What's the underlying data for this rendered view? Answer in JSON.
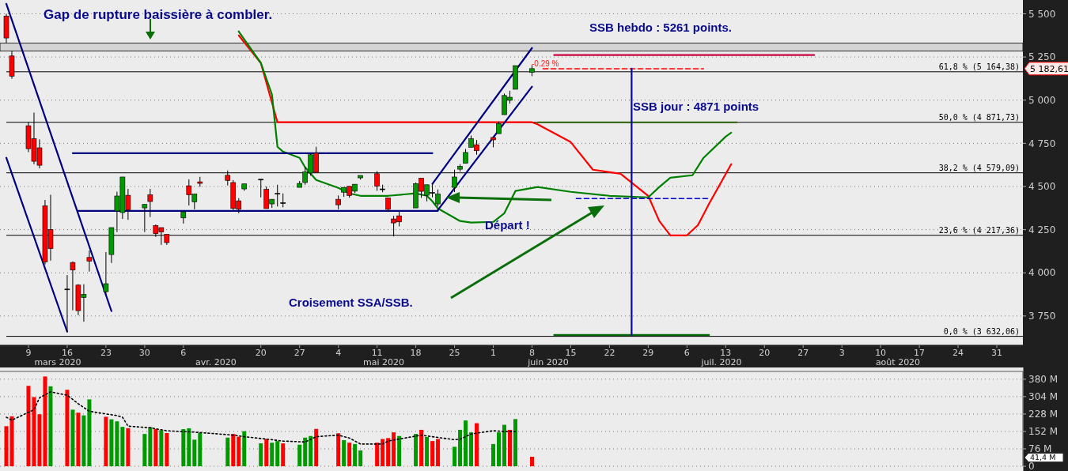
{
  "chart_data": [
    {
      "type": "candlestick",
      "title": "Gap de rupture baissière à combler.",
      "x": [
        "2020-03-05",
        "2020-03-06",
        "2020-03-09",
        "2020-03-10",
        "2020-03-11",
        "2020-03-12",
        "2020-03-13",
        "2020-03-16",
        "2020-03-17",
        "2020-03-18",
        "2020-03-19",
        "2020-03-20",
        "2020-03-23",
        "2020-03-24",
        "2020-03-25",
        "2020-03-26",
        "2020-03-27",
        "2020-03-30",
        "2020-03-31",
        "2020-04-01",
        "2020-04-02",
        "2020-04-03",
        "2020-04-06",
        "2020-04-07",
        "2020-04-08",
        "2020-04-09",
        "2020-04-14",
        "2020-04-15",
        "2020-04-16",
        "2020-04-17",
        "2020-04-20",
        "2020-04-21",
        "2020-04-22",
        "2020-04-23",
        "2020-04-24",
        "2020-04-27",
        "2020-04-28",
        "2020-04-29",
        "2020-04-30",
        "2020-05-04",
        "2020-05-05",
        "2020-05-06",
        "2020-05-07",
        "2020-05-08",
        "2020-05-11",
        "2020-05-12",
        "2020-05-13",
        "2020-05-14",
        "2020-05-15",
        "2020-05-18",
        "2020-05-19",
        "2020-05-20",
        "2020-05-21",
        "2020-05-22",
        "2020-05-25",
        "2020-05-26",
        "2020-05-27",
        "2020-05-28",
        "2020-05-29",
        "2020-06-01",
        "2020-06-02",
        "2020-06-03",
        "2020-06-04",
        "2020-06-05",
        "2020-06-08"
      ],
      "ohlc": [
        [
          5487,
          5500,
          5330,
          5360
        ],
        [
          5256,
          5284,
          5124,
          5139
        ],
        [
          4852,
          4872,
          4699,
          4719
        ],
        [
          4777,
          4928,
          4629,
          4646
        ],
        [
          4724,
          4773,
          4605,
          4623
        ],
        [
          4388,
          4422,
          4048,
          4063
        ],
        [
          4251,
          4452,
          4071,
          4140
        ],
        [
          3906,
          3987,
          3656,
          3906
        ],
        [
          4060,
          4066,
          3783,
          4016
        ],
        [
          3929,
          3934,
          3755,
          3781
        ],
        [
          3857,
          3934,
          3717,
          3875
        ],
        [
          4089,
          4129,
          4007,
          4068
        ],
        [
          3891,
          4120,
          3875,
          3937
        ],
        [
          4106,
          4262,
          4057,
          4262
        ],
        [
          4358,
          4470,
          4236,
          4445
        ],
        [
          4349,
          4555,
          4312,
          4555
        ],
        [
          4449,
          4486,
          4307,
          4365
        ],
        [
          4376,
          4396,
          4236,
          4396
        ],
        [
          4452,
          4486,
          4323,
          4413
        ],
        [
          4274,
          4280,
          4208,
          4227
        ],
        [
          4262,
          4262,
          4162,
          4236
        ],
        [
          4223,
          4223,
          4162,
          4175
        ],
        [
          4318,
          4353,
          4285,
          4353
        ],
        [
          4504,
          4541,
          4390,
          4452
        ],
        [
          4411,
          4457,
          4368,
          4457
        ],
        [
          4527,
          4556,
          4498,
          4518
        ],
        [
          4565,
          4593,
          4506,
          4535
        ],
        [
          4523,
          4537,
          4361,
          4373
        ],
        [
          4417,
          4432,
          4345,
          4368
        ],
        [
          4486,
          4515,
          4475,
          4515
        ],
        [
          4542,
          4542,
          4437,
          4542
        ],
        [
          4483,
          4500,
          4372,
          4372
        ],
        [
          4399,
          4426,
          4376,
          4426
        ],
        [
          4460,
          4510,
          4384,
          4460
        ],
        [
          4406,
          4460,
          4379,
          4406
        ],
        [
          4495,
          4532,
          4495,
          4518
        ],
        [
          4523,
          4612,
          4510,
          4584
        ],
        [
          4578,
          4689,
          4562,
          4684
        ],
        [
          4693,
          4730,
          4582,
          4582
        ],
        [
          4426,
          4448,
          4368,
          4394
        ],
        [
          4467,
          4495,
          4440,
          4495
        ],
        [
          4501,
          4501,
          4435,
          4448
        ],
        [
          4473,
          4513,
          4462,
          4513
        ],
        [
          4550,
          4564,
          4540,
          4564
        ],
        [
          4574,
          4589,
          4475,
          4502
        ],
        [
          4486,
          4510,
          4467,
          4486
        ],
        [
          4434,
          4434,
          4353,
          4368
        ],
        [
          4312,
          4330,
          4211,
          4289
        ],
        [
          4330,
          4353,
          4269,
          4295
        ],
        [
          4376,
          4523,
          4376,
          4516
        ],
        [
          4548,
          4548,
          4434,
          4472
        ],
        [
          4449,
          4510,
          4414,
          4510
        ],
        [
          4465,
          4513,
          4437,
          4465
        ],
        [
          4399,
          4483,
          4385,
          4457
        ],
        [
          4495,
          4597,
          4468,
          4555
        ],
        [
          4600,
          4629,
          4586,
          4617
        ],
        [
          4635,
          4717,
          4635,
          4697
        ],
        [
          4727,
          4795,
          4727,
          4777
        ],
        [
          4742,
          4769,
          4684,
          4707
        ],
        [
          4784,
          4784,
          4727,
          4770
        ],
        [
          4806,
          4876,
          4806,
          4864
        ],
        [
          4916,
          5038,
          4916,
          5027
        ],
        [
          4999,
          5054,
          4980,
          5017
        ],
        [
          5063,
          5200,
          5063,
          5200
        ],
        [
          5162,
          5203,
          5139,
          5182.61
        ]
      ],
      "colors": [
        "#ff0000",
        "#ff0000",
        "#ff0000",
        "#ff0000",
        "#ff0000",
        "#ff0000",
        "#ff0000",
        "#000000",
        "#ff0000",
        "#ff0000",
        "#009900",
        "#ff0000",
        "#009900",
        "#009900",
        "#009900",
        "#009900",
        "#ff0000",
        "#009900",
        "#ff0000",
        "#ff0000",
        "#ff0000",
        "#ff0000",
        "#009900",
        "#ff0000",
        "#009900",
        "#ff0000",
        "#ff0000",
        "#ff0000",
        "#ff0000",
        "#009900",
        "#000000",
        "#ff0000",
        "#009900",
        "#000000",
        "#000000",
        "#009900",
        "#009900",
        "#009900",
        "#ff0000",
        "#ff0000",
        "#009900",
        "#ff0000",
        "#009900",
        "#009900",
        "#ff0000",
        "#000000",
        "#ff0000",
        "#ff0000",
        "#ff0000",
        "#009900",
        "#ff0000",
        "#009900",
        "#000000",
        "#009900",
        "#009900",
        "#009900",
        "#009900",
        "#009900",
        "#ff0000",
        "#ff0000",
        "#009900",
        "#009900",
        "#009900",
        "#009900",
        "#009900"
      ],
      "series": [
        {
          "type": "line",
          "color": "#ff0000",
          "x": [
            "2020-04-16",
            "2020-04-20",
            "2020-04-22",
            "2020-04-23",
            "2020-06-08",
            "2020-06-09",
            "2020-06-15",
            "2020-06-19",
            "2020-06-24",
            "2020-06-29",
            "2020-07-01",
            "2020-07-03",
            "2020-07-06",
            "2020-07-08",
            "2020-07-10",
            "2020-07-14"
          ],
          "values": [
            5375,
            5215,
            4986,
            4872,
            4872,
            4860,
            4757,
            4597,
            4574,
            4446,
            4300,
            4217,
            4217,
            4277,
            4400,
            4629
          ]
        },
        {
          "type": "line",
          "color": "#008000",
          "x": [
            "2020-04-16",
            "2020-04-20",
            "2020-04-22",
            "2020-04-23",
            "2020-04-24",
            "2020-04-27",
            "2020-04-28",
            "2020-04-29",
            "2020-04-30",
            "2020-05-04",
            "2020-05-06",
            "2020-05-08",
            "2020-05-13",
            "2020-05-18",
            "2020-05-20",
            "2020-05-21",
            "2020-05-22",
            "2020-05-26",
            "2020-05-28",
            "2020-06-01",
            "2020-06-03",
            "2020-06-05",
            "2020-06-09",
            "2020-06-15",
            "2020-06-22",
            "2020-06-29",
            "2020-07-01",
            "2020-07-03",
            "2020-07-07",
            "2020-07-09",
            "2020-07-13",
            "2020-07-14"
          ],
          "values": [
            5398,
            5215,
            5032,
            4730,
            4702,
            4666,
            4611,
            4574,
            4538,
            4492,
            4460,
            4446,
            4446,
            4460,
            4446,
            4414,
            4373,
            4300,
            4291,
            4295,
            4345,
            4474,
            4497,
            4469,
            4446,
            4437,
            4497,
            4551,
            4565,
            4666,
            4789,
            4812
          ]
        },
        {
          "type": "line",
          "color": "#000080",
          "x": [
            "2020-03-05",
            "2020-03-24"
          ],
          "values": [
            5558,
            3778
          ]
        },
        {
          "type": "line",
          "color": "#000080",
          "x": [
            "2020-03-05",
            "2020-03-16"
          ],
          "values": [
            4666,
            3659
          ]
        },
        {
          "type": "line",
          "color": "#000080",
          "x": [
            "2020-03-17",
            "2020-05-21"
          ],
          "values": [
            4693,
            4693
          ]
        },
        {
          "type": "line",
          "color": "#000080",
          "x": [
            "2020-03-18",
            "2020-05-22"
          ],
          "values": [
            4359,
            4359
          ]
        },
        {
          "type": "line",
          "color": "#000080",
          "x": [
            "2020-05-21",
            "2020-06-08"
          ],
          "values": [
            4515,
            5302
          ]
        },
        {
          "type": "line",
          "color": "#000080",
          "x": [
            "2020-05-22",
            "2020-06-08"
          ],
          "values": [
            4364,
            5078
          ]
        },
        {
          "type": "line",
          "color": "#c8003c",
          "x": [
            "2020-06-12",
            "2020-07-29"
          ],
          "values": [
            5261,
            5261
          ]
        },
        {
          "type": "line",
          "color": "#3d6b1e",
          "x": [
            "2020-06-09",
            "2020-07-15"
          ],
          "values": [
            4871,
            4871
          ]
        },
        {
          "type": "line",
          "color": "#ff0000",
          "line_style": "dashed",
          "x": [
            "2020-06-10",
            "2020-07-09"
          ],
          "values": [
            5182,
            5182
          ]
        },
        {
          "type": "line",
          "color": "#0000cc",
          "line_style": "dashed",
          "x": [
            "2020-06-16",
            "2020-07-10"
          ],
          "values": [
            4430,
            4430
          ]
        },
        {
          "type": "line",
          "color": "#006400",
          "x": [
            "2020-06-12",
            "2020-07-10"
          ],
          "values": [
            3640,
            3640
          ]
        },
        {
          "type": "line",
          "color": "#0a0a96",
          "x": [
            "2020-06-26",
            "2020-06-26"
          ],
          "values": [
            5182,
            3640
          ]
        }
      ],
      "xlim": [
        "2020-03-05",
        "2020-09-04"
      ],
      "ylim": [
        3580,
        5580
      ],
      "xticks": [
        {
          "value": "2020-03-09",
          "label": "9"
        },
        {
          "value": "2020-03-16",
          "label": "16"
        },
        {
          "value": "2020-03-23",
          "label": "23"
        },
        {
          "value": "2020-03-30",
          "label": "30"
        },
        {
          "value": "2020-04-06",
          "label": "6"
        },
        {
          "value": "2020-04-20",
          "label": "20"
        },
        {
          "value": "2020-04-27",
          "label": "27"
        },
        {
          "value": "2020-05-04",
          "label": "4"
        },
        {
          "value": "2020-05-11",
          "label": "11"
        },
        {
          "value": "2020-05-18",
          "label": "18"
        },
        {
          "value": "2020-05-25",
          "label": "25"
        },
        {
          "value": "2020-06-01",
          "label": "1"
        },
        {
          "value": "2020-06-08",
          "label": "8"
        },
        {
          "value": "2020-06-15",
          "label": "15"
        },
        {
          "value": "2020-06-22",
          "label": "22"
        },
        {
          "value": "2020-06-29",
          "label": "29"
        },
        {
          "value": "2020-07-06",
          "label": "6"
        },
        {
          "value": "2020-07-13",
          "label": "13"
        },
        {
          "value": "2020-07-20",
          "label": "20"
        },
        {
          "value": "2020-07-27",
          "label": "27"
        },
        {
          "value": "2020-08-03",
          "label": "3"
        },
        {
          "value": "2020-08-10",
          "label": "10"
        },
        {
          "value": "2020-08-17",
          "label": "17"
        },
        {
          "value": "2020-08-24",
          "label": "24"
        },
        {
          "value": "2020-08-31",
          "label": "31"
        }
      ],
      "yticks": [
        {
          "value": 3750,
          "label": "3 750"
        },
        {
          "value": 4000,
          "label": "4 000"
        },
        {
          "value": 4250,
          "label": "4 250"
        },
        {
          "value": 4500,
          "label": "4 500"
        },
        {
          "value": 4750,
          "label": "4 750"
        },
        {
          "value": 5000,
          "label": "5 000"
        },
        {
          "value": 5250,
          "label": "5 250"
        },
        {
          "value": 5500,
          "label": "5 500"
        }
      ],
      "grid": "y",
      "bands": [
        {
          "axis": "y",
          "from": 5284,
          "to": 5330,
          "color": "#d4d4d4"
        }
      ],
      "ref_lines": [
        {
          "axis": "y",
          "value": 5164.38,
          "label": "61,8 % (5 164,38)",
          "color": "#000000"
        },
        {
          "axis": "y",
          "value": 4871.73,
          "label": "50,0 % (4 871,73)",
          "color": "#000000"
        },
        {
          "axis": "y",
          "value": 4579.09,
          "label": "38,2 % (4 579,09)",
          "color": "#000000"
        },
        {
          "axis": "y",
          "value": 4217.36,
          "label": "23,6 % (4 217,36)",
          "color": "#000000"
        },
        {
          "axis": "y",
          "value": 3632.06,
          "label": "0,0 % (3 632,06)",
          "color": "#000000"
        }
      ],
      "annotations": [
        "SSB hebdo : 5261 points.",
        "SSB jour : 4871 points",
        "Départ !",
        "Croisement SSA/SSB.",
        "-0.29 %",
        "5 182,61",
        "mars 2020",
        "avr. 2020",
        "mai 2020",
        "juin 2020",
        "juil. 2020",
        "août 2020"
      ]
    },
    {
      "type": "bar",
      "x": [
        "2020-03-05",
        "2020-03-06",
        "2020-03-09",
        "2020-03-10",
        "2020-03-11",
        "2020-03-12",
        "2020-03-13",
        "2020-03-16",
        "2020-03-17",
        "2020-03-18",
        "2020-03-19",
        "2020-03-20",
        "2020-03-23",
        "2020-03-24",
        "2020-03-25",
        "2020-03-26",
        "2020-03-27",
        "2020-03-30",
        "2020-03-31",
        "2020-04-01",
        "2020-04-02",
        "2020-04-03",
        "2020-04-06",
        "2020-04-07",
        "2020-04-08",
        "2020-04-09",
        "2020-04-14",
        "2020-04-15",
        "2020-04-16",
        "2020-04-17",
        "2020-04-20",
        "2020-04-21",
        "2020-04-22",
        "2020-04-23",
        "2020-04-24",
        "2020-04-27",
        "2020-04-28",
        "2020-04-29",
        "2020-04-30",
        "2020-05-04",
        "2020-05-05",
        "2020-05-06",
        "2020-05-07",
        "2020-05-08",
        "2020-05-11",
        "2020-05-12",
        "2020-05-13",
        "2020-05-14",
        "2020-05-15",
        "2020-05-18",
        "2020-05-19",
        "2020-05-20",
        "2020-05-21",
        "2020-05-22",
        "2020-05-25",
        "2020-05-26",
        "2020-05-27",
        "2020-05-28",
        "2020-05-29",
        "2020-06-01",
        "2020-06-02",
        "2020-06-03",
        "2020-06-04",
        "2020-06-05",
        "2020-06-08"
      ],
      "series": [
        {
          "type": "bar",
          "values": [
            175,
            218,
            351,
            302,
            227,
            392,
            349,
            334,
            247,
            234,
            222,
            292,
            216,
            205,
            196,
            172,
            166,
            141,
            171,
            163,
            157,
            145,
            162,
            166,
            116,
            146,
            125,
            141,
            129,
            153,
            100,
            119,
            103,
            110,
            100,
            94,
            125,
            132,
            163,
            144,
            114,
            103,
            97,
            69,
            103,
            119,
            123,
            148,
            132,
            141,
            159,
            128,
            110,
            119,
            85,
            159,
            200,
            148,
            188,
            97,
            148,
            181,
            159,
            206,
            41.4
          ],
          "colors": [
            "#ff0000",
            "#ff0000",
            "#ff0000",
            "#ff0000",
            "#ff0000",
            "#ff0000",
            "#009900",
            "#ff0000",
            "#009900",
            "#ff0000",
            "#009900",
            "#009900",
            "#ff0000",
            "#009900",
            "#009900",
            "#009900",
            "#ff0000",
            "#009900",
            "#009900",
            "#ff0000",
            "#009900",
            "#ff0000",
            "#009900",
            "#009900",
            "#009900",
            "#009900",
            "#009900",
            "#ff0000",
            "#ff0000",
            "#009900",
            "#009900",
            "#ff0000",
            "#009900",
            "#009900",
            "#ff0000",
            "#009900",
            "#009900",
            "#009900",
            "#ff0000",
            "#ff0000",
            "#009900",
            "#ff0000",
            "#009900",
            "#009900",
            "#ff0000",
            "#ff0000",
            "#ff0000",
            "#ff0000",
            "#009900",
            "#009900",
            "#ff0000",
            "#009900",
            "#ff0000",
            "#ff0000",
            "#009900",
            "#009900",
            "#009900",
            "#009900",
            "#ff0000",
            "#009900",
            "#009900",
            "#009900",
            "#ff0000",
            "#009900",
            "#ff0000"
          ]
        },
        {
          "type": "line",
          "color": "#000000",
          "line_style": "dotted",
          "x": [
            "2020-03-05",
            "2020-03-06",
            "2020-03-10",
            "2020-03-11",
            "2020-03-13",
            "2020-03-16",
            "2020-03-18",
            "2020-03-20",
            "2020-03-25",
            "2020-03-26",
            "2020-03-27",
            "2020-03-31",
            "2020-04-03",
            "2020-04-08",
            "2020-04-15",
            "2020-04-17",
            "2020-04-22",
            "2020-04-24",
            "2020-04-28",
            "2020-04-30",
            "2020-05-04",
            "2020-05-06",
            "2020-05-08",
            "2020-05-12",
            "2020-05-13",
            "2020-05-19",
            "2020-05-21",
            "2020-05-25",
            "2020-05-26",
            "2020-05-28",
            "2020-06-01",
            "2020-06-03",
            "2020-06-05"
          ],
          "values": [
            214,
            201,
            247,
            299,
            325,
            310,
            273,
            240,
            221,
            214,
            175,
            168,
            155,
            149,
            136,
            129,
            116,
            110,
            106,
            129,
            136,
            123,
            97,
            97,
            110,
            136,
            129,
            116,
            118,
            141,
            155,
            152,
            151
          ]
        }
      ],
      "xlim": [
        "2020-03-05",
        "2020-09-04"
      ],
      "ylim": [
        0,
        414
      ],
      "yticks": [
        {
          "value": 0,
          "label": "0"
        },
        {
          "value": 76,
          "label": "76 M"
        },
        {
          "value": 152,
          "label": "152 M"
        },
        {
          "value": 228,
          "label": "228 M"
        },
        {
          "value": 304,
          "label": "304 M"
        },
        {
          "value": 380,
          "label": "380 M"
        }
      ],
      "grid": "y",
      "tick_labels": "y",
      "annotations": [
        "41,4 M"
      ]
    }
  ]
}
